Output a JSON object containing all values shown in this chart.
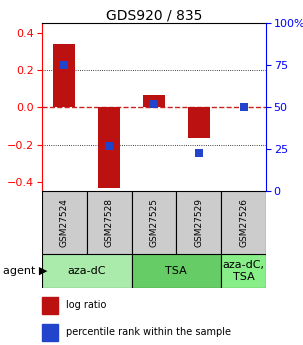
{
  "title": "GDS920 / 835",
  "samples": [
    "GSM27524",
    "GSM27528",
    "GSM27525",
    "GSM27529",
    "GSM27526"
  ],
  "log_ratios": [
    0.34,
    -0.43,
    0.065,
    -0.165,
    0.0
  ],
  "percentile_ranks": [
    75,
    27,
    52,
    23,
    50
  ],
  "ylim": [
    -0.45,
    0.45
  ],
  "y_left_ticks": [
    -0.4,
    -0.2,
    0.0,
    0.2,
    0.4
  ],
  "y_right_ticks": [
    0,
    25,
    50,
    75,
    100
  ],
  "bar_color": "#bb1111",
  "dot_color": "#2244cc",
  "zero_line_color": "#cc2222",
  "sample_box_color": "#cccccc",
  "agent_rows": [
    {
      "label": "aza-dC",
      "start": 0,
      "end": 2,
      "color": "#aaeaaa"
    },
    {
      "label": "TSA",
      "start": 2,
      "end": 4,
      "color": "#66cc66"
    },
    {
      "label": "aza-dC,\nTSA",
      "start": 4,
      "end": 5,
      "color": "#88ee88"
    }
  ],
  "agent_label": "agent",
  "legend_ratio_label": "log ratio",
  "legend_pct_label": "percentile rank within the sample",
  "bar_width": 0.5,
  "dot_size": 40,
  "title_fontsize": 10,
  "tick_fontsize": 8,
  "sample_fontsize": 6.5,
  "agent_fontsize": 8,
  "legend_fontsize": 7
}
